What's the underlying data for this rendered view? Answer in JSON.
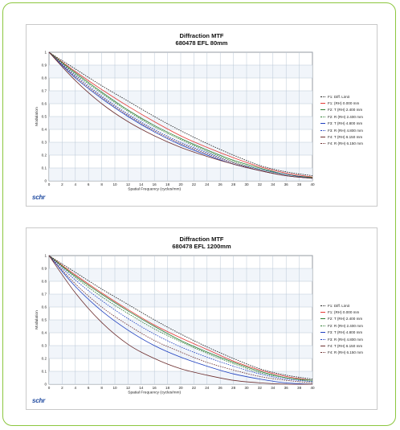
{
  "charts": [
    {
      "chart_data": {
        "type": "line",
        "title": "Diffraction MTF",
        "subtitle": "680478     EFL 80mm",
        "xlabel": "Spatial Frequency (cycles/mm)",
        "ylabel": "Modulation",
        "xlim": [
          0,
          40
        ],
        "ylim": [
          0,
          1
        ],
        "xticks": [
          "0",
          "2",
          "4",
          "6",
          "8",
          "10",
          "12",
          "14",
          "16",
          "18",
          "20",
          "22",
          "24",
          "26",
          "28",
          "30",
          "32",
          "34",
          "36",
          "38",
          "40"
        ],
        "yticks": [
          "0",
          "0.1",
          "0.2",
          "0.3",
          "0.4",
          "0.5",
          "0.6",
          "0.7",
          "0.8",
          "0.9",
          "1"
        ],
        "grid": true,
        "legend_position": "right",
        "x": [
          0,
          4,
          8,
          12,
          16,
          20,
          24,
          28,
          32,
          36,
          40
        ],
        "series": [
          {
            "name": "F1: Diff. Limit",
            "color": "#222222",
            "dash": true,
            "values": [
              1.0,
              0.87,
              0.74,
              0.62,
              0.5,
              0.39,
              0.29,
              0.2,
              0.12,
              0.07,
              0.04
            ]
          },
          {
            "name": "F1: (RH) 0.000 mm",
            "color": "#e53935",
            "dash": false,
            "values": [
              1.0,
              0.85,
              0.71,
              0.58,
              0.46,
              0.35,
              0.26,
              0.18,
              0.11,
              0.06,
              0.03
            ]
          },
          {
            "name": "F2: T (RH) 2.400 mm",
            "color": "#2e7d32",
            "dash": false,
            "values": [
              1.0,
              0.84,
              0.69,
              0.55,
              0.43,
              0.33,
              0.24,
              0.16,
              0.1,
              0.05,
              0.025
            ]
          },
          {
            "name": "F2: R (RH) 2.400 mm",
            "color": "#2e7d32",
            "dash": true,
            "values": [
              1.0,
              0.83,
              0.68,
              0.54,
              0.42,
              0.32,
              0.23,
              0.15,
              0.09,
              0.05,
              0.02
            ]
          },
          {
            "name": "F3: T (RH) 4.800 mm",
            "color": "#1e3fbf",
            "dash": false,
            "values": [
              1.0,
              0.8,
              0.64,
              0.5,
              0.38,
              0.28,
              0.2,
              0.13,
              0.08,
              0.04,
              0.02
            ]
          },
          {
            "name": "F3: R (RH) 4.800 mm",
            "color": "#1e3fbf",
            "dash": true,
            "values": [
              1.0,
              0.82,
              0.66,
              0.52,
              0.4,
              0.3,
              0.22,
              0.14,
              0.09,
              0.05,
              0.02
            ]
          },
          {
            "name": "F4: T (RH) 6.150 mm",
            "color": "#6d2f2f",
            "dash": false,
            "values": [
              1.0,
              0.78,
              0.6,
              0.46,
              0.35,
              0.26,
              0.19,
              0.13,
              0.08,
              0.04,
              0.02
            ]
          },
          {
            "name": "F4: R (RH) 6.150 mm",
            "color": "#6d2f2f",
            "dash": true,
            "values": [
              1.0,
              0.81,
              0.65,
              0.51,
              0.39,
              0.29,
              0.21,
              0.14,
              0.08,
              0.04,
              0.02
            ]
          }
        ]
      }
    },
    {
      "chart_data": {
        "type": "line",
        "title": "Diffraction MTF",
        "subtitle": "680478     EFL 1200mm",
        "xlabel": "Spatial Frequency (cycles/mm)",
        "ylabel": "Modulation",
        "xlim": [
          0,
          40
        ],
        "ylim": [
          0,
          1
        ],
        "xticks": [
          "0",
          "2",
          "4",
          "6",
          "8",
          "10",
          "12",
          "14",
          "16",
          "18",
          "20",
          "22",
          "24",
          "26",
          "28",
          "30",
          "32",
          "34",
          "36",
          "38",
          "40"
        ],
        "yticks": [
          "0",
          "0.1",
          "0.2",
          "0.3",
          "0.4",
          "0.5",
          "0.6",
          "0.7",
          "0.8",
          "0.9",
          "1"
        ],
        "grid": true,
        "legend_position": "right",
        "x": [
          0,
          4,
          8,
          12,
          16,
          20,
          24,
          28,
          32,
          36,
          40
        ],
        "series": [
          {
            "name": "F1: Diff. Limit",
            "color": "#222222",
            "dash": true,
            "values": [
              1.0,
              0.87,
              0.74,
              0.62,
              0.5,
              0.39,
              0.29,
              0.2,
              0.12,
              0.07,
              0.04
            ]
          },
          {
            "name": "F1: (RH) 0.000 mm",
            "color": "#e53935",
            "dash": false,
            "values": [
              1.0,
              0.85,
              0.71,
              0.58,
              0.46,
              0.36,
              0.27,
              0.18,
              0.11,
              0.06,
              0.03
            ]
          },
          {
            "name": "F2: T (RH) 2.400 mm",
            "color": "#2e7d32",
            "dash": false,
            "values": [
              1.0,
              0.84,
              0.7,
              0.57,
              0.45,
              0.34,
              0.25,
              0.17,
              0.1,
              0.05,
              0.03
            ]
          },
          {
            "name": "F2: R (RH) 2.400 mm",
            "color": "#2e7d32",
            "dash": true,
            "values": [
              1.0,
              0.83,
              0.68,
              0.55,
              0.43,
              0.33,
              0.24,
              0.16,
              0.09,
              0.05,
              0.02
            ]
          },
          {
            "name": "F3: T (RH) 4.800 mm",
            "color": "#1e3fbf",
            "dash": false,
            "values": [
              1.0,
              0.76,
              0.57,
              0.42,
              0.3,
              0.21,
              0.14,
              0.08,
              0.04,
              0.01,
              0.0
            ]
          },
          {
            "name": "F3: R (RH) 4.800 mm",
            "color": "#1e3fbf",
            "dash": true,
            "values": [
              1.0,
              0.81,
              0.65,
              0.51,
              0.39,
              0.29,
              0.21,
              0.14,
              0.08,
              0.04,
              0.02
            ]
          },
          {
            "name": "F4: T (RH) 6.150 mm",
            "color": "#6d2f2f",
            "dash": false,
            "values": [
              1.0,
              0.71,
              0.48,
              0.31,
              0.2,
              0.12,
              0.07,
              0.03,
              0.01,
              0.0,
              0.0
            ]
          },
          {
            "name": "F4: R (RH) 6.150 mm",
            "color": "#6d2f2f",
            "dash": true,
            "values": [
              1.0,
              0.78,
              0.6,
              0.46,
              0.34,
              0.25,
              0.17,
              0.11,
              0.06,
              0.03,
              0.01
            ]
          }
        ]
      }
    }
  ],
  "logo_text": "schr",
  "colors": {
    "frame": "#8cc63f",
    "grid": "#b9c7d6",
    "plot_bg": "#ffffff"
  }
}
